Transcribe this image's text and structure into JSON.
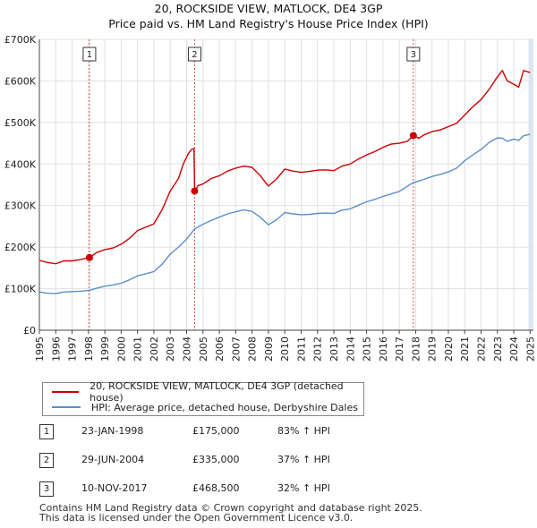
{
  "colors": {
    "price_line": "#cc0000",
    "hpi_line": "#5b8fc9",
    "band": "#dde6f6",
    "grid": "#e0e0e0",
    "marker_line": "#d05050"
  },
  "chart_data": {
    "type": "line",
    "title": "20, ROCKSIDE VIEW, MATLOCK, DE4 3GP",
    "subtitle": "Price paid vs. HM Land Registry's House Price Index (HPI)",
    "xlim": [
      1995,
      2025.2
    ],
    "ylim": [
      0,
      700000
    ],
    "y_ticks": [
      0,
      100000,
      200000,
      300000,
      400000,
      500000,
      600000,
      700000
    ],
    "y_tick_labels": [
      "£0",
      "£100K",
      "£200K",
      "£300K",
      "£400K",
      "£500K",
      "£600K",
      "£700K"
    ],
    "x_ticks": [
      1995,
      1996,
      1997,
      1998,
      1999,
      2000,
      2001,
      2002,
      2003,
      2004,
      2005,
      2006,
      2007,
      2008,
      2009,
      2010,
      2011,
      2012,
      2013,
      2014,
      2015,
      2016,
      2017,
      2018,
      2019,
      2020,
      2021,
      2022,
      2023,
      2024,
      2025
    ],
    "x_tick_labels": [
      "1995",
      "1996",
      "1997",
      "1998",
      "1999",
      "2000",
      "2001",
      "2002",
      "2003",
      "2004",
      "2005",
      "2006",
      "2007",
      "2008",
      "2009",
      "2010",
      "2011",
      "2012",
      "2013",
      "2014",
      "2015",
      "2016",
      "2017",
      "2018",
      "2019",
      "2020",
      "2021",
      "2022",
      "2023",
      "2024",
      "2025"
    ],
    "series": [
      {
        "name": "20, ROCKSIDE VIEW, MATLOCK, DE4 3GP (detached house)",
        "color": "#cc0000",
        "points": [
          [
            1995.0,
            168000
          ],
          [
            1995.5,
            163000
          ],
          [
            1996.0,
            160000
          ],
          [
            1996.5,
            167000
          ],
          [
            1997.0,
            167000
          ],
          [
            1997.5,
            170000
          ],
          [
            1998.06,
            175000
          ],
          [
            1998.5,
            187000
          ],
          [
            1999.0,
            194000
          ],
          [
            1999.5,
            198000
          ],
          [
            2000.0,
            207000
          ],
          [
            2000.5,
            221000
          ],
          [
            2001.0,
            240000
          ],
          [
            2001.5,
            248000
          ],
          [
            2002.0,
            256000
          ],
          [
            2002.5,
            290000
          ],
          [
            2003.0,
            335000
          ],
          [
            2003.5,
            365000
          ],
          [
            2003.8,
            400000
          ],
          [
            2004.1,
            425000
          ],
          [
            2004.3,
            435000
          ],
          [
            2004.45,
            437000
          ],
          [
            2004.49,
            335000
          ],
          [
            2004.7,
            348000
          ],
          [
            2005.0,
            352000
          ],
          [
            2005.5,
            365000
          ],
          [
            2006.0,
            372000
          ],
          [
            2006.5,
            383000
          ],
          [
            2007.0,
            390000
          ],
          [
            2007.5,
            395000
          ],
          [
            2008.0,
            392000
          ],
          [
            2008.5,
            372000
          ],
          [
            2009.0,
            347000
          ],
          [
            2009.5,
            364000
          ],
          [
            2010.0,
            388000
          ],
          [
            2010.5,
            383000
          ],
          [
            2011.0,
            380000
          ],
          [
            2011.5,
            382000
          ],
          [
            2012.0,
            385000
          ],
          [
            2012.5,
            386000
          ],
          [
            2013.0,
            384000
          ],
          [
            2013.5,
            395000
          ],
          [
            2014.0,
            400000
          ],
          [
            2014.5,
            412000
          ],
          [
            2015.0,
            422000
          ],
          [
            2015.5,
            430000
          ],
          [
            2016.0,
            440000
          ],
          [
            2016.5,
            448000
          ],
          [
            2017.0,
            450000
          ],
          [
            2017.5,
            455000
          ],
          [
            2017.86,
            468500
          ],
          [
            2018.2,
            462000
          ],
          [
            2018.5,
            470000
          ],
          [
            2019.0,
            478000
          ],
          [
            2019.5,
            482000
          ],
          [
            2020.0,
            490000
          ],
          [
            2020.5,
            498000
          ],
          [
            2021.0,
            518000
          ],
          [
            2021.5,
            538000
          ],
          [
            2022.0,
            555000
          ],
          [
            2022.5,
            580000
          ],
          [
            2023.0,
            610000
          ],
          [
            2023.3,
            625000
          ],
          [
            2023.6,
            600000
          ],
          [
            2024.0,
            592000
          ],
          [
            2024.3,
            585000
          ],
          [
            2024.6,
            625000
          ],
          [
            2025.0,
            620000
          ]
        ]
      },
      {
        "name": "HPI: Average price, detached house, Derbyshire Dales",
        "color": "#5b8fc9",
        "points": [
          [
            1995.0,
            92000
          ],
          [
            1995.5,
            89000
          ],
          [
            1996.0,
            88000
          ],
          [
            1996.5,
            92000
          ],
          [
            1997.0,
            93000
          ],
          [
            1997.5,
            94000
          ],
          [
            1998.06,
            96000
          ],
          [
            1998.5,
            101000
          ],
          [
            1999.0,
            106000
          ],
          [
            1999.5,
            109000
          ],
          [
            2000.0,
            113000
          ],
          [
            2000.5,
            121000
          ],
          [
            2001.0,
            131000
          ],
          [
            2001.5,
            136000
          ],
          [
            2002.0,
            141000
          ],
          [
            2002.5,
            159000
          ],
          [
            2003.0,
            183000
          ],
          [
            2003.5,
            200000
          ],
          [
            2004.0,
            219000
          ],
          [
            2004.49,
            244000
          ],
          [
            2005.0,
            255000
          ],
          [
            2005.5,
            264000
          ],
          [
            2006.0,
            272000
          ],
          [
            2006.5,
            280000
          ],
          [
            2007.0,
            285000
          ],
          [
            2007.5,
            290000
          ],
          [
            2008.0,
            286000
          ],
          [
            2008.5,
            272000
          ],
          [
            2009.0,
            254000
          ],
          [
            2009.5,
            266000
          ],
          [
            2010.0,
            283000
          ],
          [
            2010.5,
            280000
          ],
          [
            2011.0,
            278000
          ],
          [
            2011.5,
            279000
          ],
          [
            2012.0,
            281000
          ],
          [
            2012.5,
            282000
          ],
          [
            2013.0,
            281000
          ],
          [
            2013.5,
            289000
          ],
          [
            2014.0,
            292000
          ],
          [
            2014.5,
            301000
          ],
          [
            2015.0,
            309000
          ],
          [
            2015.5,
            315000
          ],
          [
            2016.0,
            322000
          ],
          [
            2016.5,
            328000
          ],
          [
            2017.0,
            334000
          ],
          [
            2017.5,
            347000
          ],
          [
            2017.86,
            355000
          ],
          [
            2018.2,
            359000
          ],
          [
            2018.5,
            363000
          ],
          [
            2019.0,
            370000
          ],
          [
            2019.5,
            375000
          ],
          [
            2020.0,
            381000
          ],
          [
            2020.5,
            390000
          ],
          [
            2021.0,
            408000
          ],
          [
            2021.5,
            422000
          ],
          [
            2022.0,
            435000
          ],
          [
            2022.5,
            452000
          ],
          [
            2023.0,
            463000
          ],
          [
            2023.3,
            462000
          ],
          [
            2023.6,
            455000
          ],
          [
            2024.0,
            460000
          ],
          [
            2024.3,
            457000
          ],
          [
            2024.6,
            468000
          ],
          [
            2025.0,
            472000
          ]
        ]
      }
    ],
    "sales": [
      {
        "label": "1",
        "date": "23-JAN-1998",
        "x": 1998.06,
        "price": 175000,
        "price_text": "£175,000",
        "hpi_text": "83% ↑ HPI"
      },
      {
        "label": "2",
        "date": "29-JUN-2004",
        "x": 2004.49,
        "price": 335000,
        "price_text": "£335,000",
        "hpi_text": "37% ↑ HPI"
      },
      {
        "label": "3",
        "date": "10-NOV-2017",
        "x": 2017.86,
        "price": 468500,
        "price_text": "£468,500",
        "hpi_text": "32% ↑ HPI"
      }
    ]
  },
  "legend": {
    "price_label": "20, ROCKSIDE VIEW, MATLOCK, DE4 3GP (detached house)",
    "hpi_label": "HPI: Average price, detached house, Derbyshire Dales"
  },
  "footer": {
    "line1": "Contains HM Land Registry data © Crown copyright and database right 2025.",
    "line2": "This data is licensed under the Open Government Licence v3.0."
  }
}
